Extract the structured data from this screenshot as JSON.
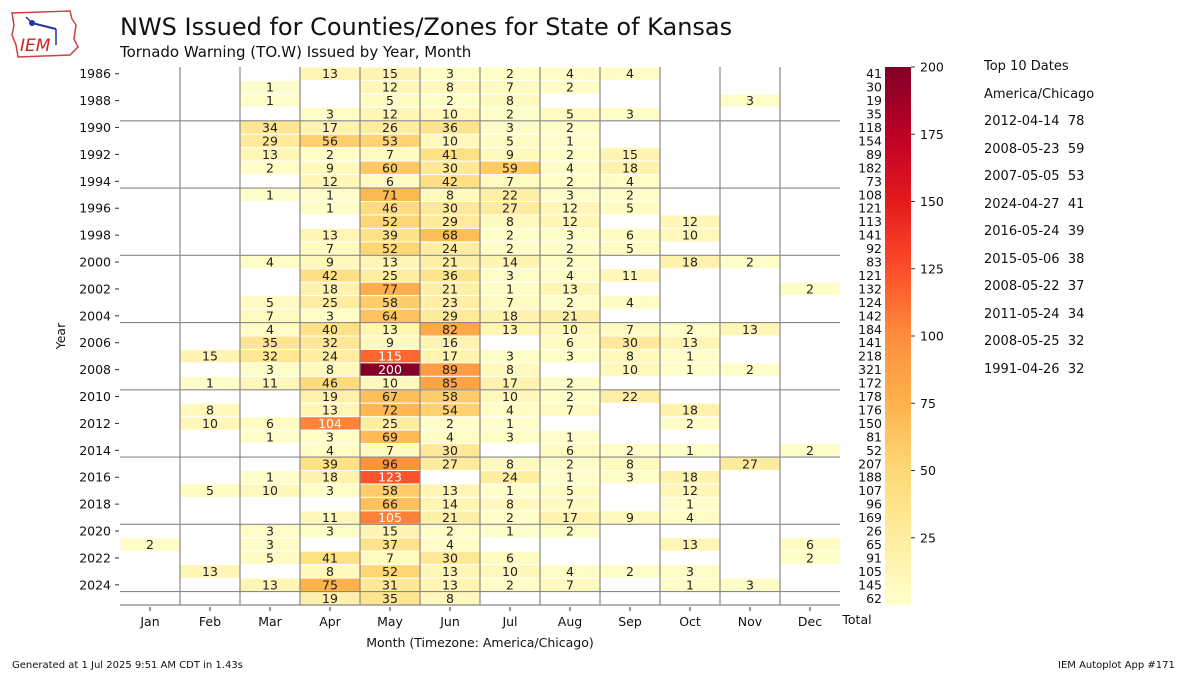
{
  "header": {
    "title": "NWS Issued for Counties/Zones for State of Kansas",
    "subtitle": "Tornado Warning (TO.W) Issued by Year, Month",
    "logo_text": "IEM"
  },
  "top_dates": {
    "title": "Top 10 Dates",
    "timezone": "America/Chicago",
    "items": [
      "2012-04-14  78",
      "2008-05-23  59",
      "2007-05-05  53",
      "2024-04-27  41",
      "2016-05-24  39",
      "2015-05-06  38",
      "2008-05-22  37",
      "2011-05-24  34",
      "2008-05-25  32",
      "1991-04-26  32"
    ]
  },
  "footer": {
    "generated": "Generated at 1 Jul 2025 9:51 AM CDT in 1.43s",
    "app": "IEM Autoplot App #171"
  },
  "chart_data": {
    "type": "heatmap",
    "xlabel": "Month (Timezone: America/Chicago)",
    "ylabel": "Year",
    "total_label": "Total",
    "months": [
      "Jan",
      "Feb",
      "Mar",
      "Apr",
      "May",
      "Jun",
      "Jul",
      "Aug",
      "Sep",
      "Oct",
      "Nov",
      "Dec"
    ],
    "colorbar": {
      "min": 0,
      "max": 200,
      "ticks": [
        25,
        50,
        75,
        100,
        125,
        150,
        175,
        200
      ],
      "colormap": "YlOrRd"
    },
    "rows": [
      {
        "year": 1986,
        "values": [
          null,
          null,
          null,
          13,
          15,
          3,
          2,
          4,
          4,
          null,
          null,
          null
        ],
        "total": 41
      },
      {
        "year": 1987,
        "values": [
          null,
          null,
          1,
          null,
          12,
          8,
          7,
          2,
          null,
          null,
          null,
          null
        ],
        "total": 30
      },
      {
        "year": 1988,
        "values": [
          null,
          null,
          1,
          null,
          5,
          2,
          8,
          null,
          null,
          null,
          3,
          null
        ],
        "total": 19
      },
      {
        "year": 1989,
        "values": [
          null,
          null,
          null,
          3,
          12,
          10,
          2,
          5,
          3,
          null,
          null,
          null
        ],
        "total": 35
      },
      {
        "year": 1990,
        "values": [
          null,
          null,
          34,
          17,
          26,
          36,
          3,
          2,
          null,
          null,
          null,
          null
        ],
        "total": 118
      },
      {
        "year": 1991,
        "values": [
          null,
          null,
          29,
          56,
          53,
          10,
          5,
          1,
          null,
          null,
          null,
          null
        ],
        "total": 154
      },
      {
        "year": 1992,
        "values": [
          null,
          null,
          13,
          2,
          7,
          41,
          9,
          2,
          15,
          null,
          null,
          null
        ],
        "total": 89
      },
      {
        "year": 1993,
        "values": [
          null,
          null,
          2,
          9,
          60,
          30,
          59,
          4,
          18,
          null,
          null,
          null
        ],
        "total": 182
      },
      {
        "year": 1994,
        "values": [
          null,
          null,
          null,
          12,
          6,
          42,
          7,
          2,
          4,
          null,
          null,
          null
        ],
        "total": 73
      },
      {
        "year": 1995,
        "values": [
          null,
          null,
          1,
          1,
          71,
          8,
          22,
          3,
          2,
          null,
          null,
          null
        ],
        "total": 108
      },
      {
        "year": 1996,
        "values": [
          null,
          null,
          null,
          1,
          46,
          30,
          27,
          12,
          5,
          null,
          null,
          null
        ],
        "total": 121
      },
      {
        "year": 1997,
        "values": [
          null,
          null,
          null,
          null,
          52,
          29,
          8,
          12,
          null,
          12,
          null,
          null
        ],
        "total": 113
      },
      {
        "year": 1998,
        "values": [
          null,
          null,
          null,
          13,
          39,
          68,
          2,
          3,
          6,
          10,
          null,
          null
        ],
        "total": 141
      },
      {
        "year": 1999,
        "values": [
          null,
          null,
          null,
          7,
          52,
          24,
          2,
          2,
          5,
          null,
          null,
          null
        ],
        "total": 92
      },
      {
        "year": 2000,
        "values": [
          null,
          null,
          4,
          9,
          13,
          21,
          14,
          2,
          null,
          18,
          2,
          null
        ],
        "total": 83
      },
      {
        "year": 2001,
        "values": [
          null,
          null,
          null,
          42,
          25,
          36,
          3,
          4,
          11,
          null,
          null,
          null
        ],
        "total": 121
      },
      {
        "year": 2002,
        "values": [
          null,
          null,
          null,
          18,
          77,
          21,
          1,
          13,
          null,
          null,
          null,
          2
        ],
        "total": 132
      },
      {
        "year": 2003,
        "values": [
          null,
          null,
          5,
          25,
          58,
          23,
          7,
          2,
          4,
          null,
          null,
          null
        ],
        "total": 124
      },
      {
        "year": 2004,
        "values": [
          null,
          null,
          7,
          3,
          64,
          29,
          18,
          21,
          null,
          null,
          null,
          null
        ],
        "total": 142
      },
      {
        "year": 2005,
        "values": [
          null,
          null,
          4,
          40,
          13,
          82,
          13,
          10,
          7,
          2,
          13,
          null
        ],
        "total": 184
      },
      {
        "year": 2006,
        "values": [
          null,
          null,
          35,
          32,
          9,
          16,
          null,
          6,
          30,
          13,
          null,
          null
        ],
        "total": 141
      },
      {
        "year": 2007,
        "values": [
          null,
          15,
          32,
          24,
          115,
          17,
          3,
          3,
          8,
          1,
          null,
          null
        ],
        "total": 218
      },
      {
        "year": 2008,
        "values": [
          null,
          null,
          3,
          8,
          200,
          89,
          8,
          null,
          10,
          1,
          2,
          null
        ],
        "total": 321
      },
      {
        "year": 2009,
        "values": [
          null,
          1,
          11,
          46,
          10,
          85,
          17,
          2,
          null,
          null,
          null,
          null
        ],
        "total": 172
      },
      {
        "year": 2010,
        "values": [
          null,
          null,
          null,
          19,
          67,
          58,
          10,
          2,
          22,
          null,
          null,
          null
        ],
        "total": 178
      },
      {
        "year": 2011,
        "values": [
          null,
          8,
          null,
          13,
          72,
          54,
          4,
          7,
          null,
          18,
          null,
          null
        ],
        "total": 176
      },
      {
        "year": 2012,
        "values": [
          null,
          10,
          6,
          104,
          25,
          2,
          1,
          null,
          null,
          2,
          null,
          null
        ],
        "total": 150
      },
      {
        "year": 2013,
        "values": [
          null,
          null,
          1,
          3,
          69,
          4,
          3,
          1,
          null,
          null,
          null,
          null
        ],
        "total": 81
      },
      {
        "year": 2014,
        "values": [
          null,
          null,
          null,
          4,
          7,
          30,
          null,
          6,
          2,
          1,
          null,
          2
        ],
        "total": 52
      },
      {
        "year": 2015,
        "values": [
          null,
          null,
          null,
          39,
          96,
          27,
          8,
          2,
          8,
          null,
          27,
          null
        ],
        "total": 207
      },
      {
        "year": 2016,
        "values": [
          null,
          null,
          1,
          18,
          123,
          null,
          24,
          1,
          3,
          18,
          null,
          null
        ],
        "total": 188
      },
      {
        "year": 2017,
        "values": [
          null,
          5,
          10,
          3,
          58,
          13,
          1,
          5,
          null,
          12,
          null,
          null
        ],
        "total": 107
      },
      {
        "year": 2018,
        "values": [
          null,
          null,
          null,
          null,
          66,
          14,
          8,
          7,
          null,
          1,
          null,
          null
        ],
        "total": 96
      },
      {
        "year": 2019,
        "values": [
          null,
          null,
          null,
          11,
          105,
          21,
          2,
          17,
          9,
          4,
          null,
          null
        ],
        "total": 169
      },
      {
        "year": 2020,
        "values": [
          null,
          null,
          3,
          3,
          15,
          2,
          1,
          2,
          null,
          null,
          null,
          null
        ],
        "total": 26
      },
      {
        "year": 2021,
        "values": [
          2,
          null,
          3,
          null,
          37,
          4,
          null,
          null,
          null,
          13,
          null,
          6
        ],
        "total": 65
      },
      {
        "year": 2022,
        "values": [
          null,
          null,
          5,
          41,
          7,
          30,
          6,
          null,
          null,
          null,
          null,
          2
        ],
        "total": 91
      },
      {
        "year": 2023,
        "values": [
          null,
          13,
          null,
          8,
          52,
          13,
          10,
          4,
          2,
          3,
          null,
          null
        ],
        "total": 105
      },
      {
        "year": 2024,
        "values": [
          null,
          null,
          13,
          75,
          31,
          13,
          2,
          7,
          null,
          1,
          3,
          null
        ],
        "total": 145
      },
      {
        "year": 2025,
        "values": [
          null,
          null,
          null,
          19,
          35,
          8,
          null,
          null,
          null,
          null,
          null,
          null
        ],
        "total": 62
      }
    ]
  }
}
